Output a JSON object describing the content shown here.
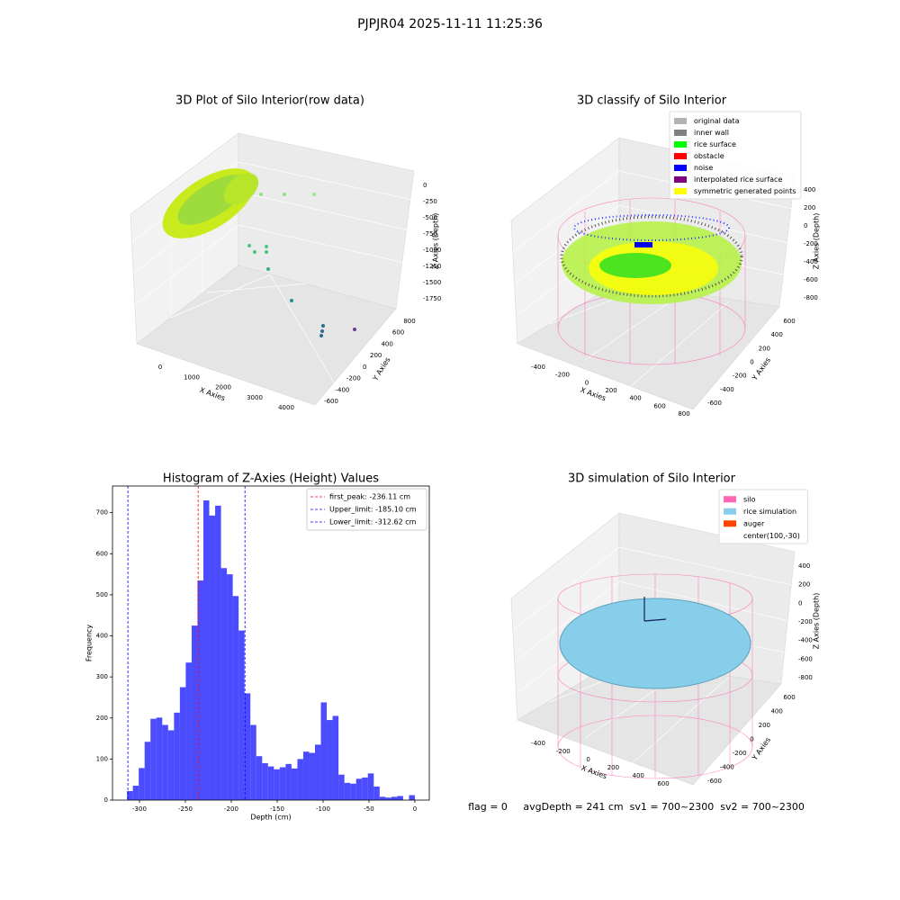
{
  "title": "PJPJR04 2025-11-11 11:25:36",
  "footer": "flag = 0     avgDepth = 241 cm  sv1 = 700~2300  sv2 = 700~2300",
  "chart_data": [
    {
      "type": "scatter3d",
      "title": "3D Plot of Silo Interior(row data)",
      "xlabel": "X Axies",
      "ylabel": "Y Axies",
      "zlabel": "Z Axies (Depth)",
      "xticks": [
        0,
        1000,
        2000,
        3000,
        4000
      ],
      "yticks": [
        -600,
        -400,
        -200,
        0,
        200,
        400,
        600,
        800
      ],
      "zticks": [
        0,
        -250,
        -500,
        -750,
        -1000,
        -1250,
        -1500,
        -1750
      ]
    },
    {
      "type": "scatter3d",
      "title": "3D classify of Silo Interior",
      "xlabel": "X Axies",
      "ylabel": "Y Axies",
      "zlabel": "Z Axies (Depth)",
      "xticks": [
        -400,
        -200,
        0,
        200,
        400,
        600,
        800
      ],
      "yticks": [
        -600,
        -400,
        -200,
        0,
        200,
        400,
        600
      ],
      "zticks": [
        400,
        200,
        0,
        -200,
        -400,
        -600,
        -800
      ],
      "series": [
        {
          "name": "original data",
          "color": "#b3b3b3"
        },
        {
          "name": "inner wall",
          "color": "#808080"
        },
        {
          "name": "rice surface",
          "color": "#00ff00"
        },
        {
          "name": "obstacle",
          "color": "#ff0000"
        },
        {
          "name": "noise",
          "color": "#0000ff"
        },
        {
          "name": "interpolated rice surface",
          "color": "#800080"
        },
        {
          "name": "symmetric generated points",
          "color": "#ffff00"
        }
      ]
    },
    {
      "type": "histogram",
      "title": "Histogram of Z-Axies (Height) Values",
      "xlabel": "Depth (cm)",
      "ylabel": "Frequency",
      "bins": [
        -313.6,
        -307.2,
        -300.8,
        -294.4,
        -288,
        -281.6,
        -275.2,
        -268.8,
        -262.4,
        -256,
        -249.6,
        -243.2,
        -236.8,
        -230.4,
        -224,
        -217.6,
        -211.2,
        -204.8,
        -198.4,
        -192,
        -185.6,
        -179.2,
        -172.8,
        -166.4,
        -160,
        -153.6,
        -147.2,
        -140.8,
        -134.4,
        -128,
        -121.6,
        -115.2,
        -108.8,
        -102.4,
        -96,
        -89.6,
        -83.2,
        -76.8,
        -70.4,
        -64,
        -57.6,
        -51.2,
        -44.8,
        -38.4,
        -32,
        -25.6,
        -19.2,
        -12.8,
        -6.4,
        0
      ],
      "counts": [
        22,
        35,
        78,
        142,
        198,
        201,
        183,
        170,
        213,
        275,
        335,
        425,
        535,
        730,
        693,
        717,
        565,
        550,
        497,
        413,
        260,
        183,
        107,
        90,
        82,
        75,
        80,
        88,
        77,
        100,
        118,
        115,
        135,
        238,
        195,
        205,
        62,
        42,
        40,
        52,
        55,
        65,
        33,
        8,
        6,
        8,
        10,
        0,
        12
      ],
      "color": "#0000ff",
      "opacity": 0.7,
      "xlim": [
        -329.4,
        15.7
      ],
      "ylim": [
        0,
        765
      ],
      "xticks": [
        -300,
        -250,
        -200,
        -150,
        -100,
        -50,
        0
      ],
      "yticks": [
        0,
        100,
        200,
        300,
        400,
        500,
        600,
        700
      ],
      "vlines": [
        {
          "name": "first_peak: -236.11 cm",
          "value": -236.11,
          "color": "#ff0000"
        },
        {
          "name": "Upper_limit: -185.10 cm",
          "value": -185.1,
          "color": "#0000ff"
        },
        {
          "name": "Lower_limit: -312.62 cm",
          "value": -312.62,
          "color": "#0000ff"
        }
      ],
      "legend": "upper right"
    },
    {
      "type": "scatter3d",
      "title": "3D simulation of Silo Interior",
      "xlabel": "X Axies",
      "ylabel": "Y Axies",
      "zlabel": "Z Axies (Depth)",
      "xticks": [
        -400,
        -200,
        0,
        200,
        400,
        600
      ],
      "yticks": [
        -600,
        -400,
        -200,
        0,
        200,
        400,
        600
      ],
      "zticks": [
        400,
        200,
        0,
        -200,
        -400,
        -600,
        -800
      ],
      "series": [
        {
          "name": "silo",
          "color": "#ff69b4"
        },
        {
          "name": "rice simulation",
          "color": "#87ceeb"
        },
        {
          "name": "auger",
          "color": "#ff4500"
        },
        {
          "name": "center(100,-30)",
          "color": null
        }
      ]
    }
  ]
}
